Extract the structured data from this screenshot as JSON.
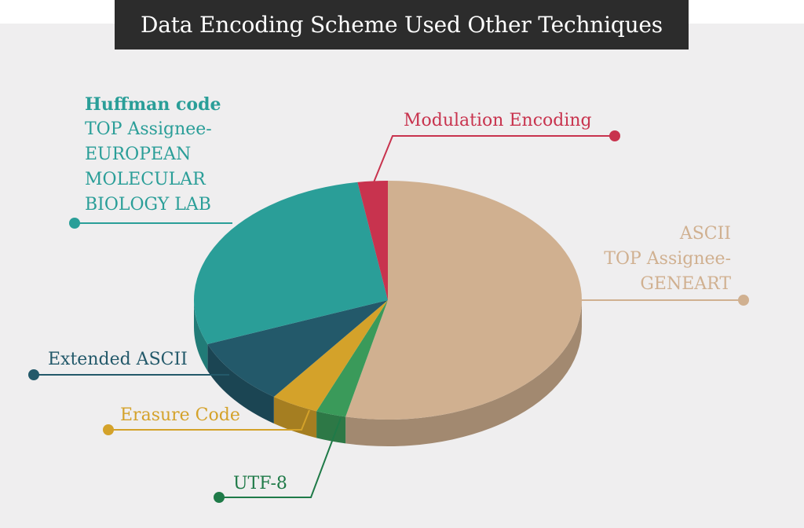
{
  "title": "Data Encoding Scheme Used Other Techniques",
  "colors": {
    "ascii": "#d0b090",
    "modulation": "#c8334e",
    "huffman": "#2a9e98",
    "extended_ascii": "#23596a",
    "erasure": "#d4a22a",
    "utf8": "#3a9a5a",
    "title_bg": "#2c2c2c",
    "background": "#efeeef"
  },
  "labels": {
    "huffman": {
      "name": "Huffman code",
      "line1": "TOP Assignee-",
      "line2": "EUROPEAN",
      "line3": "MOLECULAR",
      "line4": "BIOLOGY LAB"
    },
    "modulation": {
      "name": "Modulation Encoding"
    },
    "ascii": {
      "name": "ASCII",
      "line1": "TOP Assignee-",
      "line2": "GENEART"
    },
    "extended_ascii": {
      "name": "Extended ASCII"
    },
    "erasure": {
      "name": "Erasure Code"
    },
    "utf8": {
      "name": "UTF-8"
    }
  },
  "chart_data": {
    "type": "pie",
    "title": "Data Encoding Scheme Used Other Techniques",
    "style": "3d",
    "slices": [
      {
        "key": "ascii",
        "label": "ASCII",
        "value": 53.5
      },
      {
        "key": "utf8",
        "label": "UTF-8",
        "value": 2.5
      },
      {
        "key": "erasure",
        "label": "Erasure Code",
        "value": 4.0
      },
      {
        "key": "extended_ascii",
        "label": "Extended ASCII",
        "value": 9.0
      },
      {
        "key": "huffman",
        "label": "Huffman code",
        "value": 28.5
      },
      {
        "key": "modulation",
        "label": "Modulation Encoding",
        "value": 2.5
      }
    ]
  }
}
